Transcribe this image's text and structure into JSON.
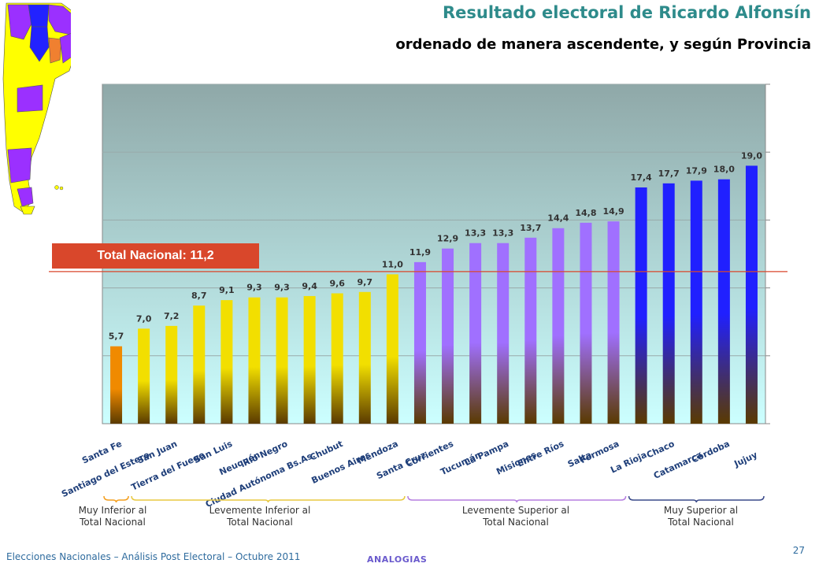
{
  "header": {
    "title": "Resultado electoral de Ricardo Alfonsín",
    "subtitle": "ordenado de manera ascendente, y según Provincia"
  },
  "reference": {
    "label": "Total Nacional: 11,2",
    "value": 11.2,
    "color": "#d9472b"
  },
  "groups": [
    {
      "label": "Muy Inferior al\nTotal Nacional",
      "color": "#f4a020"
    },
    {
      "label": "Levemente Inferior al\nTotal Nacional",
      "color": "#e8c840"
    },
    {
      "label": "Levemente Superior al\nTotal Nacional",
      "color": "#b57fe0"
    },
    {
      "label": "Muy Superior al\nTotal Nacional",
      "color": "#3a4a8a"
    }
  ],
  "colors": {
    "orange": "#f08a00",
    "gold": "#f2df00",
    "violet": "#a070ff",
    "blue": "#2020ff",
    "bar_base": "#5a3a00",
    "plot_top": "#8fa8a8",
    "plot_bottom": "#ccffff",
    "title": "#2e8b8b",
    "footer": "#2e6b9e"
  },
  "chart_data": {
    "type": "bar",
    "categories": [
      "Santa Fe",
      "Santiago del Estero",
      "San Juan",
      "Tierra del Fuego",
      "San Luis",
      "Neuquén",
      "Río Negro",
      "Ciudad Autónoma Bs.As.",
      "Chubut",
      "Buenos Aires",
      "Mendoza",
      "Santa Cruz",
      "Corrientes",
      "Tucumán",
      "La Pampa",
      "Misiones",
      "Entre Ríos",
      "Salta",
      "Formosa",
      "La Rioja",
      "Chaco",
      "Catamarca",
      "Córdoba",
      "Jujuy"
    ],
    "values": [
      5.7,
      7.0,
      7.2,
      8.7,
      9.1,
      9.3,
      9.3,
      9.4,
      9.6,
      9.7,
      11.0,
      11.9,
      12.9,
      13.3,
      13.3,
      13.7,
      14.4,
      14.8,
      14.9,
      17.4,
      17.7,
      17.9,
      18.0,
      19.0
    ],
    "value_labels": [
      "5,7",
      "7,0",
      "7,2",
      "8,7",
      "9,1",
      "9,3",
      "9,3",
      "9,4",
      "9,6",
      "9,7",
      "11,0",
      "11,9",
      "12,9",
      "13,3",
      "13,3",
      "13,7",
      "14,4",
      "14,8",
      "14,9",
      "17,4",
      "17,7",
      "17,9",
      "18,0",
      "19,0"
    ],
    "categories_group": [
      0,
      1,
      1,
      1,
      1,
      1,
      1,
      1,
      1,
      1,
      1,
      2,
      2,
      2,
      2,
      2,
      2,
      2,
      2,
      3,
      3,
      3,
      3,
      3
    ],
    "ylim": [
      0,
      25
    ],
    "grid": true,
    "reference_line": 11.2
  },
  "footer": {
    "text": "Elecciones Nacionales – Análisis Post Electoral – Octubre 2011",
    "brand": "ANALOGIAS",
    "page_number": "27"
  }
}
